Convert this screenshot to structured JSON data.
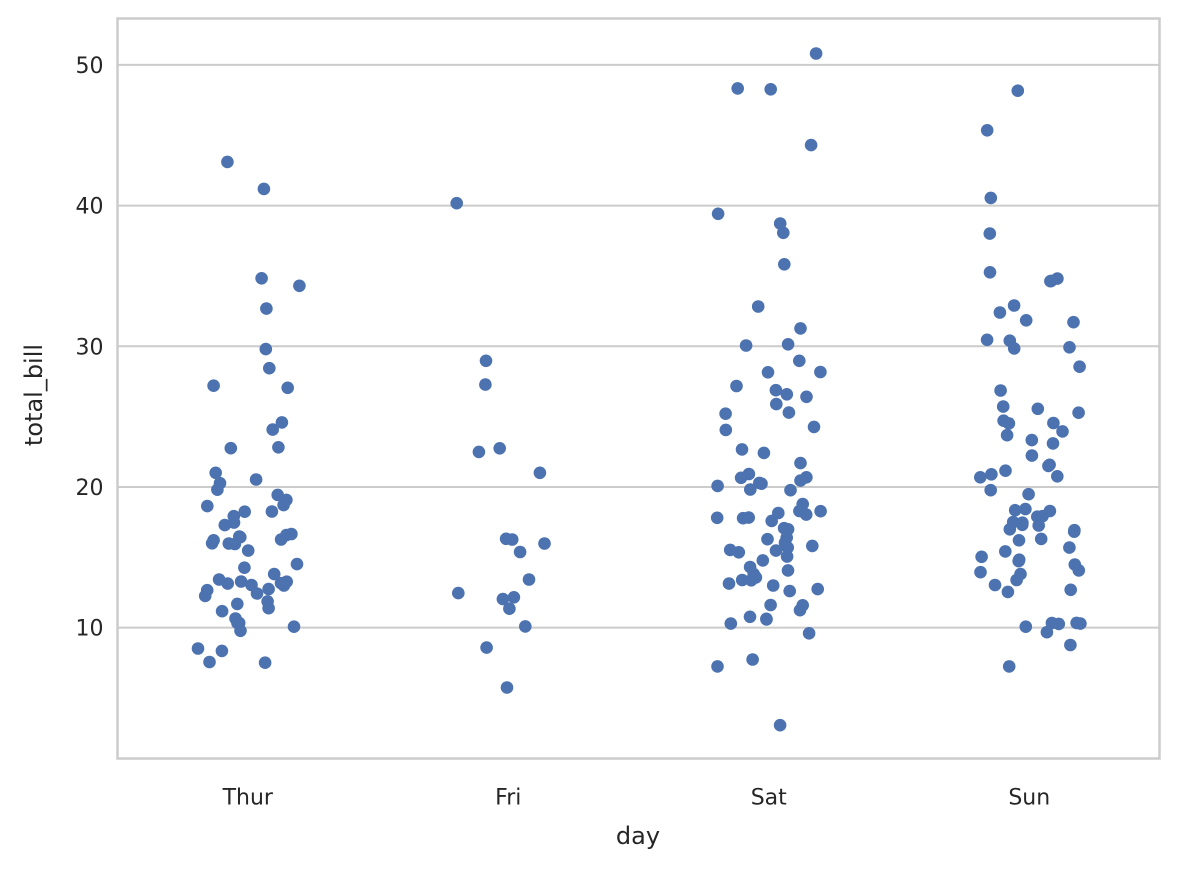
{
  "chart_data": {
    "type": "scatter",
    "subtype": "strip",
    "title": "",
    "xlabel": "day",
    "ylabel": "total_bill",
    "categories": [
      "Thur",
      "Fri",
      "Sat",
      "Sun"
    ],
    "ylim": [
      0.7,
      53.3
    ],
    "yticks": [
      10,
      20,
      30,
      40,
      50
    ],
    "grid": "horizontal",
    "legend": "none",
    "colors": {
      "point": "#4c72b0",
      "grid": "#cccccc",
      "frame": "#cccccc",
      "text": "#262626",
      "background": "#ffffff"
    },
    "series": [
      {
        "category": "Thur",
        "values": [
          41.19,
          43.11,
          34.83,
          34.3,
          32.68,
          29.8,
          27.2,
          27.05,
          28.44,
          24.59,
          24.08,
          22.76,
          22.82,
          21.01,
          20.53,
          20.27,
          19.81,
          19.44,
          19.08,
          18.71,
          18.64,
          18.24,
          18.26,
          17.92,
          17.29,
          17.47,
          16.66,
          16.58,
          16.47,
          16.43,
          16.27,
          16.21,
          16.0,
          15.98,
          15.95,
          15.48,
          14.52,
          14.26,
          13.81,
          13.42,
          13.28,
          13.27,
          13.16,
          13.13,
          13.03,
          13.0,
          12.74,
          12.66,
          12.43,
          12.26,
          11.87,
          11.69,
          11.38,
          11.17,
          10.65,
          10.34,
          10.33,
          10.07,
          9.78,
          8.52,
          8.35,
          7.56,
          7.51
        ]
      },
      {
        "category": "Fri",
        "values": [
          40.17,
          28.97,
          27.28,
          22.75,
          22.49,
          21.01,
          16.32,
          16.27,
          15.98,
          15.38,
          13.42,
          12.46,
          12.16,
          12.03,
          11.35,
          10.09,
          8.58,
          5.75
        ]
      },
      {
        "category": "Sat",
        "values": [
          50.81,
          48.33,
          48.27,
          44.3,
          38.73,
          39.42,
          38.07,
          35.83,
          32.83,
          31.27,
          30.14,
          30.06,
          28.97,
          28.17,
          28.15,
          27.18,
          26.88,
          26.59,
          26.41,
          25.89,
          25.29,
          25.21,
          24.27,
          24.06,
          22.67,
          22.42,
          21.7,
          20.92,
          20.69,
          20.65,
          20.45,
          20.29,
          20.23,
          20.08,
          19.82,
          19.77,
          18.78,
          18.29,
          18.28,
          18.15,
          18.04,
          17.82,
          17.81,
          17.78,
          17.59,
          17.07,
          16.99,
          16.4,
          16.29,
          16.04,
          15.81,
          15.69,
          15.53,
          15.48,
          15.36,
          15.06,
          14.78,
          14.31,
          14.07,
          13.81,
          13.57,
          13.39,
          13.37,
          13.13,
          13.0,
          12.74,
          12.6,
          11.61,
          11.59,
          11.24,
          10.77,
          10.63,
          10.59,
          10.29,
          9.6,
          7.74,
          7.25,
          3.07
        ]
      },
      {
        "category": "Sun",
        "values": [
          48.17,
          45.35,
          40.55,
          38.01,
          35.26,
          34.81,
          34.65,
          34.63,
          32.9,
          32.4,
          31.85,
          31.71,
          30.4,
          30.46,
          29.93,
          29.85,
          28.55,
          26.86,
          25.71,
          25.56,
          25.28,
          24.71,
          24.55,
          24.52,
          23.95,
          23.68,
          23.33,
          23.1,
          22.23,
          21.58,
          21.5,
          21.16,
          20.9,
          20.76,
          20.69,
          19.77,
          19.49,
          18.43,
          18.35,
          18.29,
          17.92,
          17.89,
          17.51,
          17.46,
          17.31,
          17.26,
          16.99,
          16.93,
          16.82,
          16.31,
          16.21,
          15.69,
          15.42,
          15.04,
          14.83,
          14.73,
          14.48,
          14.07,
          13.94,
          13.81,
          13.39,
          13.03,
          12.69,
          12.54,
          10.34,
          10.33,
          10.29,
          10.27,
          10.07,
          9.68,
          8.77,
          7.25
        ]
      }
    ]
  }
}
